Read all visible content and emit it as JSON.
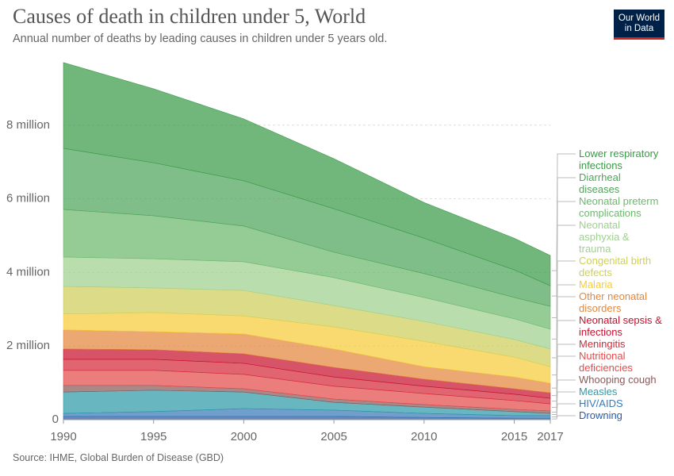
{
  "chart_data": {
    "type": "stacked-area",
    "title": "Causes of death in children under 5, World",
    "subtitle": "Annual number of deaths by leading causes in children under 5 years old.",
    "source": "Source: IHME, Global Burden of Disease (GBD)",
    "logo": "Our World in Data",
    "x": [
      1990,
      1995,
      2000,
      2005,
      2010,
      2015,
      2017
    ],
    "xlim": [
      1990,
      2017
    ],
    "xticks": [
      1990,
      1995,
      2000,
      2005,
      2010,
      2015,
      2017
    ],
    "ylim": [
      0,
      10
    ],
    "yticks": [
      0,
      {
        "value": 2,
        "label": "2 million"
      },
      {
        "value": 4,
        "label": "4 million"
      },
      {
        "value": 6,
        "label": "6 million"
      },
      {
        "value": 8,
        "label": "8 million"
      }
    ],
    "grid": true,
    "series": [
      {
        "name": "Lower respiratory infections",
        "color": "#3a9a47",
        "values": [
          2.33,
          2.01,
          1.68,
          1.36,
          0.97,
          0.86,
          0.82
        ]
      },
      {
        "name": "Diarrheal diseases",
        "color": "#4ea55a",
        "values": [
          1.66,
          1.44,
          1.23,
          1.18,
          0.96,
          0.75,
          0.56
        ]
      },
      {
        "name": "Neonatal preterm complications",
        "color": "#6cb86c",
        "values": [
          1.29,
          1.17,
          0.97,
          0.69,
          0.65,
          0.58,
          0.62
        ]
      },
      {
        "name": "Neonatal asphyxia & trauma",
        "color": "#9fd08f",
        "values": [
          0.8,
          0.79,
          0.78,
          0.76,
          0.65,
          0.56,
          0.54
        ]
      },
      {
        "name": "Congenital birth defects",
        "color": "#cfcf5a",
        "values": [
          0.75,
          0.67,
          0.69,
          0.58,
          0.54,
          0.48,
          0.48
        ]
      },
      {
        "name": "Malaria",
        "color": "#f6cc3a",
        "values": [
          0.43,
          0.52,
          0.49,
          0.6,
          0.69,
          0.54,
          0.45
        ]
      },
      {
        "name": "Other neonatal disorders",
        "color": "#e4873c",
        "values": [
          0.52,
          0.49,
          0.54,
          0.5,
          0.34,
          0.32,
          0.26
        ]
      },
      {
        "name": "Neonatal sepsis & infections",
        "color": "#c8102e",
        "values": [
          0.28,
          0.26,
          0.26,
          0.26,
          0.19,
          0.15,
          0.15
        ]
      },
      {
        "name": "Meningitis",
        "color": "#d42a3a",
        "values": [
          0.3,
          0.3,
          0.3,
          0.25,
          0.2,
          0.17,
          0.15
        ]
      },
      {
        "name": "Nutritional deficiencies",
        "color": "#e34b4b",
        "values": [
          0.41,
          0.41,
          0.39,
          0.35,
          0.3,
          0.24,
          0.19
        ]
      },
      {
        "name": "Whooping cough",
        "color": "#8a5a5a",
        "values": [
          0.18,
          0.13,
          0.09,
          0.09,
          0.07,
          0.06,
          0.07
        ]
      },
      {
        "name": "Measles",
        "color": "#2e9aa8",
        "values": [
          0.58,
          0.58,
          0.45,
          0.21,
          0.17,
          0.11,
          0.06
        ]
      },
      {
        "name": "HIV/AIDS",
        "color": "#3a7ab8",
        "values": [
          0.08,
          0.13,
          0.21,
          0.17,
          0.11,
          0.07,
          0.07
        ]
      },
      {
        "name": "Drowning",
        "color": "#2c5aa6",
        "values": [
          0.09,
          0.09,
          0.09,
          0.09,
          0.06,
          0.04,
          0.04
        ]
      }
    ]
  }
}
